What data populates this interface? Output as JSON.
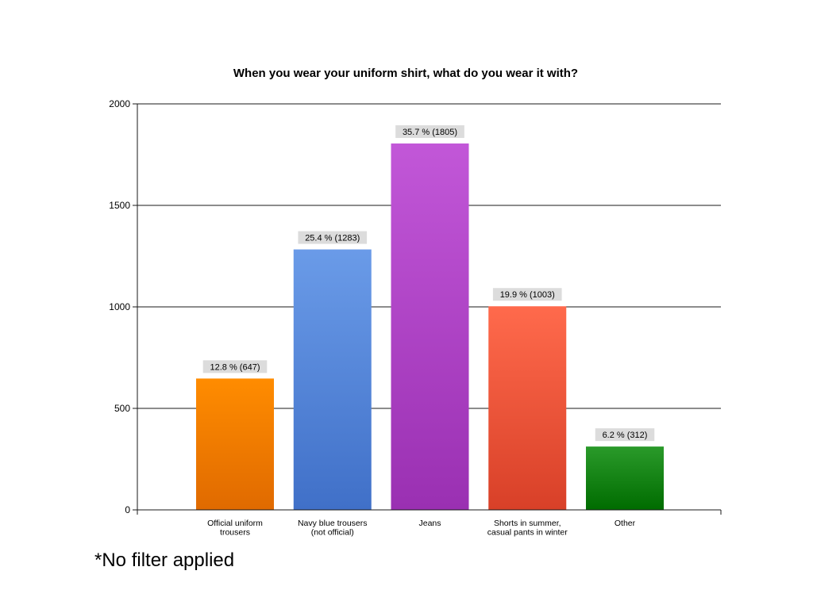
{
  "chart_data": {
    "type": "bar",
    "title": "When you wear your uniform shirt, what do you wear it with?",
    "xlabel": "",
    "ylabel": "",
    "ylim": [
      0,
      2000
    ],
    "yticks": [
      0,
      500,
      1000,
      1500,
      2000
    ],
    "ytick_labels": [
      "0",
      "500",
      "1000",
      "1500",
      "2000"
    ],
    "grid": true,
    "legend": "none",
    "categories": [
      [
        "Official uniform",
        "trousers"
      ],
      [
        "Navy blue trousers",
        "(not official)"
      ],
      [
        "Jeans"
      ],
      [
        "Shorts in summer,",
        "casual pants in winter"
      ],
      [
        "Other"
      ]
    ],
    "values": [
      647,
      1283,
      1805,
      1003,
      312
    ],
    "data_labels": [
      "12.8 % (647)",
      "25.4 % (1283)",
      "35.7 % (1805)",
      "19.9 % (1003)",
      "6.2 % (312)"
    ],
    "colors": [
      {
        "top": "#ff8c00",
        "bottom": "#e06a00"
      },
      {
        "top": "#6a9be8",
        "bottom": "#4070c8"
      },
      {
        "top": "#c257d8",
        "bottom": "#9a30b2"
      },
      {
        "top": "#ff6a4c",
        "bottom": "#d84028"
      },
      {
        "top": "#2a9a2a",
        "bottom": "#006c00"
      }
    ]
  },
  "footnote": "*No filter applied"
}
